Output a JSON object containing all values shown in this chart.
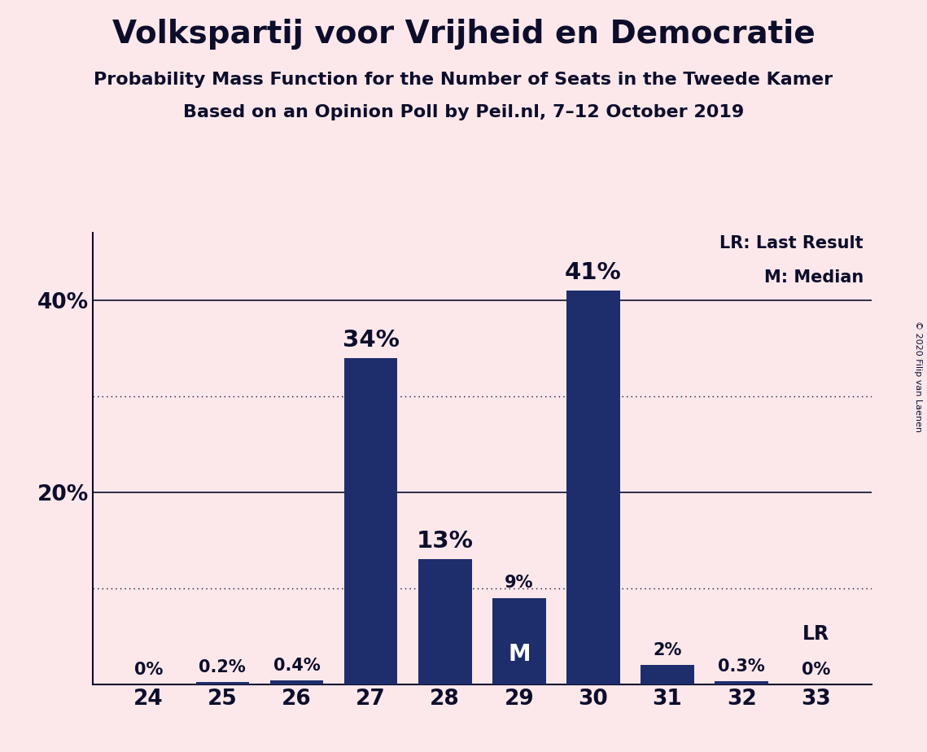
{
  "title": "Volkspartij voor Vrijheid en Democratie",
  "subtitle1": "Probability Mass Function for the Number of Seats in the Tweede Kamer",
  "subtitle2": "Based on an Opinion Poll by Peil.nl, 7–12 October 2019",
  "copyright": "© 2020 Filip van Laenen",
  "seats": [
    24,
    25,
    26,
    27,
    28,
    29,
    30,
    31,
    32,
    33
  ],
  "probabilities": [
    0.0,
    0.2,
    0.4,
    34.0,
    13.0,
    9.0,
    41.0,
    2.0,
    0.3,
    0.0
  ],
  "bar_labels": [
    "0%",
    "0.2%",
    "0.4%",
    "34%",
    "13%",
    "9%",
    "41%",
    "2%",
    "0.3%",
    "0%"
  ],
  "median_seat": 29,
  "last_result_seat": 33,
  "bar_color": "#1e2d6b",
  "background_color": "#fce8eb",
  "text_color": "#0d0d2b",
  "dotted_lines": [
    10,
    30
  ],
  "solid_lines": [
    20,
    40
  ],
  "ylim": [
    0,
    47
  ],
  "title_fontsize": 28,
  "subtitle_fontsize": 16,
  "tick_fontsize": 19,
  "legend_fontsize": 15,
  "bar_label_fontsize_large": 21,
  "bar_label_fontsize_small": 15,
  "median_label_fontsize": 20,
  "lr_label_fontsize": 17,
  "copyright_fontsize": 8,
  "bar_width": 0.72
}
